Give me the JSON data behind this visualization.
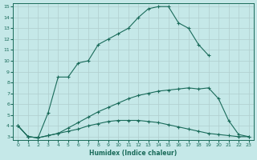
{
  "xlabel": "Humidex (Indice chaleur)",
  "xlim": [
    -0.5,
    23.5
  ],
  "ylim": [
    2.7,
    15.3
  ],
  "xticks": [
    0,
    1,
    2,
    3,
    4,
    5,
    6,
    7,
    8,
    9,
    10,
    11,
    12,
    13,
    14,
    15,
    16,
    17,
    18,
    19,
    20,
    21,
    22,
    23
  ],
  "yticks": [
    3,
    4,
    5,
    6,
    7,
    8,
    9,
    10,
    11,
    12,
    13,
    14,
    15
  ],
  "bg_color": "#c5e8e8",
  "line_color": "#1a6b5a",
  "grid_color": "#b0cece",
  "line1_x": [
    0,
    1,
    2,
    3,
    4,
    5,
    6,
    7,
    8,
    9,
    10,
    11,
    12,
    13,
    14,
    15,
    16,
    17,
    18,
    19
  ],
  "line1_y": [
    4.0,
    3.0,
    2.9,
    5.2,
    8.5,
    8.5,
    9.8,
    10.0,
    11.5,
    12.0,
    12.5,
    13.0,
    14.0,
    14.8,
    15.0,
    15.0,
    13.5,
    13.0,
    11.5,
    10.5
  ],
  "line2_x": [
    0,
    1,
    2,
    3,
    4,
    5,
    6,
    7,
    8,
    9,
    10,
    11,
    12,
    13,
    14,
    15,
    16,
    17,
    18,
    19,
    20,
    21,
    22,
    23
  ],
  "line2_y": [
    4.0,
    3.0,
    2.9,
    3.1,
    3.3,
    3.8,
    4.3,
    4.8,
    5.3,
    5.7,
    6.1,
    6.5,
    6.8,
    7.0,
    7.2,
    7.3,
    7.4,
    7.5,
    7.4,
    7.5,
    6.5,
    4.5,
    3.2,
    3.0
  ],
  "line3_x": [
    0,
    1,
    2,
    3,
    4,
    5,
    6,
    7,
    8,
    9,
    10,
    11,
    12,
    13,
    14,
    15,
    16,
    17,
    18,
    19,
    20,
    21,
    22,
    23
  ],
  "line3_y": [
    4.0,
    3.0,
    2.9,
    3.1,
    3.3,
    3.5,
    3.7,
    4.0,
    4.2,
    4.4,
    4.5,
    4.5,
    4.5,
    4.4,
    4.3,
    4.1,
    3.9,
    3.7,
    3.5,
    3.3,
    3.2,
    3.1,
    3.0,
    3.0
  ]
}
